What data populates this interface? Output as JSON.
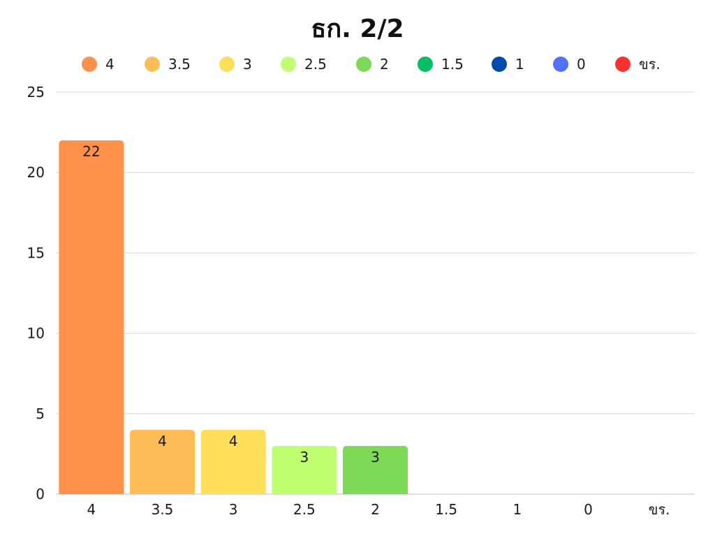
{
  "chart_data": {
    "type": "bar",
    "title": "ธก. 2/2",
    "xlabel": "",
    "ylabel": "",
    "categories": [
      "4",
      "3.5",
      "3",
      "2.5",
      "2",
      "1.5",
      "1",
      "0",
      "ขร."
    ],
    "values": [
      22,
      4,
      4,
      3,
      3,
      0,
      0,
      0,
      0
    ],
    "data_labels": [
      "22",
      "4",
      "4",
      "3",
      "3",
      "",
      "",
      "",
      ""
    ],
    "colors": [
      "#FF914D",
      "#FFBD59",
      "#FFDE59",
      "#C1FF72",
      "#7ED957",
      "#00BF63",
      "#004AAD",
      "#5271FF",
      "#FF3131"
    ],
    "ylim": [
      0,
      25
    ],
    "yticks": [
      0,
      5,
      10,
      15,
      20,
      25
    ],
    "grid": true,
    "legend": {
      "placement": "top-center",
      "entries": [
        "4",
        "3.5",
        "3",
        "2.5",
        "2",
        "1.5",
        "1",
        "0",
        "ขร."
      ]
    }
  }
}
